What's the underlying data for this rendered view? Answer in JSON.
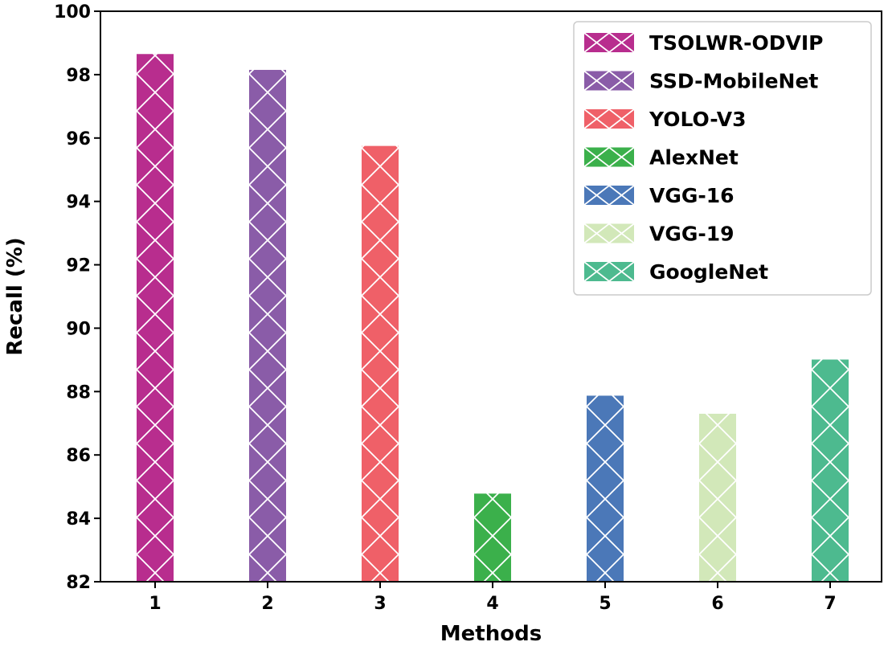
{
  "chart_data": {
    "type": "bar",
    "title": "",
    "xlabel": "Methods",
    "ylabel": "Recall (%)",
    "ylim": [
      82,
      100
    ],
    "yticks": [
      82,
      84,
      86,
      88,
      90,
      92,
      94,
      96,
      98,
      100
    ],
    "categories": [
      "1",
      "2",
      "3",
      "4",
      "5",
      "6",
      "7"
    ],
    "series": [
      {
        "name": "TSOLWR-ODVIP",
        "category": "1",
        "value": 98.65,
        "color": "#b82d8e"
      },
      {
        "name": "SSD-MobileNet",
        "category": "2",
        "value": 98.15,
        "color": "#8a5ca8"
      },
      {
        "name": "YOLO-V3",
        "category": "3",
        "value": 95.75,
        "color": "#ef6068"
      },
      {
        "name": "AlexNet",
        "category": "4",
        "value": 84.78,
        "color": "#3bb04b"
      },
      {
        "name": "VGG-16",
        "category": "5",
        "value": 87.87,
        "color": "#4b78b8"
      },
      {
        "name": "VGG-19",
        "category": "6",
        "value": 87.3,
        "color": "#d2e8b9"
      },
      {
        "name": "GoogleNet",
        "category": "7",
        "value": 89.01,
        "color": "#4dba8f"
      }
    ],
    "grid": false,
    "hatch": "cross-diagonal",
    "legend_position": "top-right"
  }
}
